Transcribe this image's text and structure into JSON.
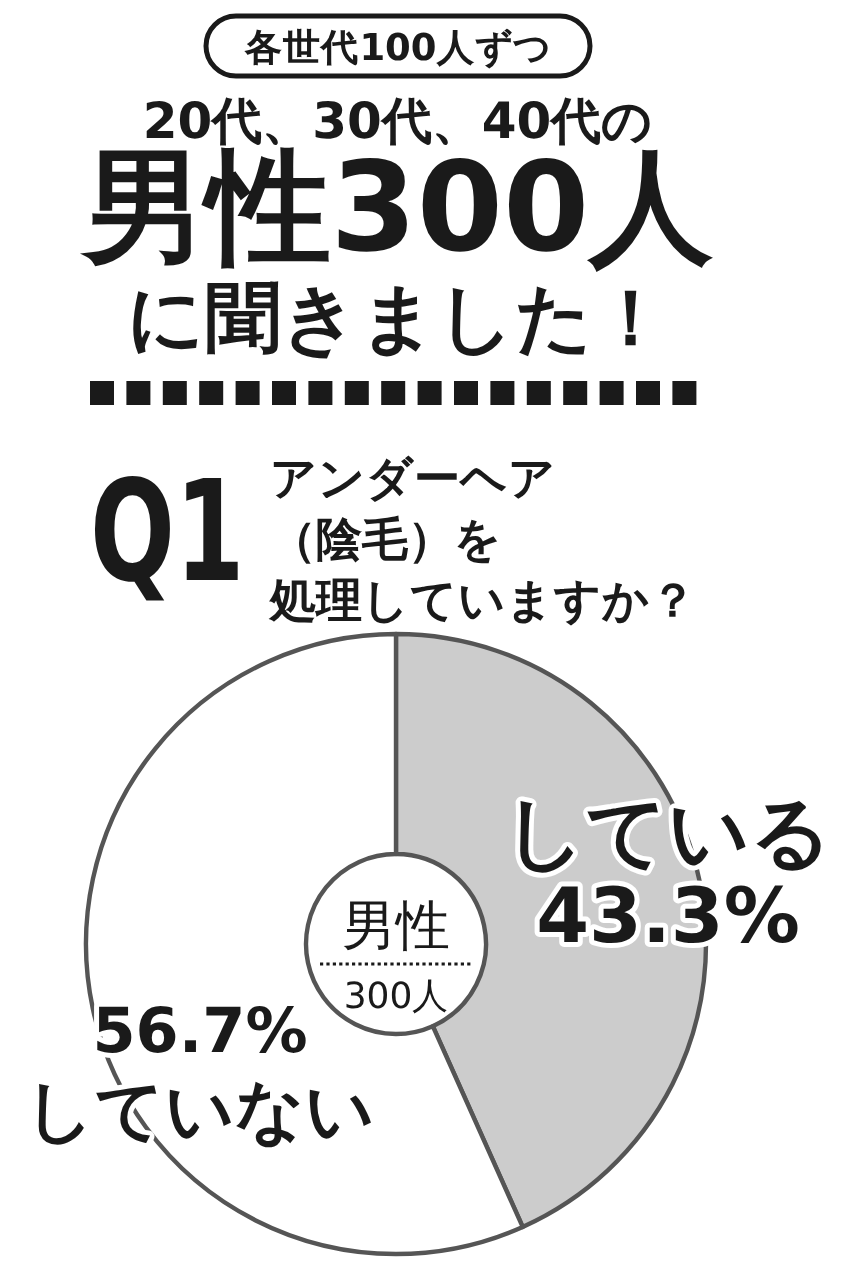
{
  "chart_data": {
    "type": "donut",
    "title": "20代、30代、40代の男性300人に聞きました！",
    "subtitle": "アンダーヘア（陰毛）を処理していますか？",
    "categories": [
      "している",
      "していない"
    ],
    "values": [
      43.3,
      56.7
    ],
    "colors": [
      "#cccccc",
      "#ffffff"
    ],
    "value_labels": [
      "43.3%",
      "56.7%"
    ],
    "annotations": [
      "各世代100人ずつ",
      "Q1",
      "男性",
      "300人"
    ]
  }
}
